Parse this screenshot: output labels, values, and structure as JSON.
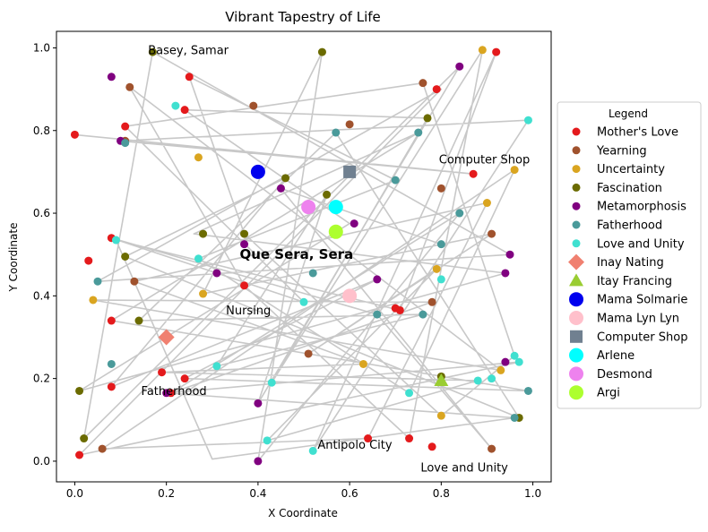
{
  "chart_data": {
    "type": "scatter",
    "title": "Vibrant Tapestry of Life",
    "xlabel": "X Coordinate",
    "ylabel": "Y Coordinate",
    "xlim": [
      -0.04,
      1.04
    ],
    "ylim": [
      -0.05,
      1.04
    ],
    "xticks": [
      "0.0",
      "0.2",
      "0.4",
      "0.6",
      "0.8",
      "1.0"
    ],
    "yticks": [
      "0.0",
      "0.2",
      "0.4",
      "0.6",
      "0.8",
      "1.0"
    ],
    "grid": false,
    "legend_title": "Legend",
    "legend_position": "right",
    "series": [
      {
        "name": "Mother's Love",
        "color": "#e41a1c",
        "marker": "circle",
        "points": [
          [
            0.0,
            0.79
          ],
          [
            0.01,
            0.015
          ],
          [
            0.03,
            0.485
          ],
          [
            0.08,
            0.54
          ],
          [
            0.08,
            0.34
          ],
          [
            0.08,
            0.18
          ],
          [
            0.11,
            0.81
          ],
          [
            0.19,
            0.215
          ],
          [
            0.21,
            0.165
          ],
          [
            0.24,
            0.2
          ],
          [
            0.24,
            0.85
          ],
          [
            0.25,
            0.93
          ],
          [
            0.37,
            0.425
          ],
          [
            0.64,
            0.055
          ],
          [
            0.7,
            0.37
          ],
          [
            0.71,
            0.365
          ],
          [
            0.73,
            0.055
          ],
          [
            0.78,
            0.035
          ],
          [
            0.79,
            0.9
          ],
          [
            0.87,
            0.695
          ],
          [
            0.92,
            0.99
          ]
        ]
      },
      {
        "name": "Yearning",
        "color": "#a0522d",
        "marker": "circle",
        "points": [
          [
            0.06,
            0.03
          ],
          [
            0.11,
            0.775
          ],
          [
            0.12,
            0.905
          ],
          [
            0.13,
            0.435
          ],
          [
            0.39,
            0.86
          ],
          [
            0.51,
            0.26
          ],
          [
            0.6,
            0.815
          ],
          [
            0.76,
            0.915
          ],
          [
            0.78,
            0.385
          ],
          [
            0.8,
            0.66
          ],
          [
            0.91,
            0.55
          ],
          [
            0.91,
            0.03
          ]
        ]
      },
      {
        "name": "Uncertainty",
        "color": "#daa520",
        "marker": "circle",
        "points": [
          [
            0.04,
            0.39
          ],
          [
            0.27,
            0.735
          ],
          [
            0.28,
            0.405
          ],
          [
            0.63,
            0.235
          ],
          [
            0.79,
            0.465
          ],
          [
            0.8,
            0.11
          ],
          [
            0.89,
            0.995
          ],
          [
            0.9,
            0.625
          ],
          [
            0.93,
            0.22
          ],
          [
            0.96,
            0.705
          ]
        ]
      },
      {
        "name": "Fascination",
        "color": "#6b6b00",
        "marker": "circle",
        "points": [
          [
            0.01,
            0.17
          ],
          [
            0.02,
            0.055
          ],
          [
            0.11,
            0.495
          ],
          [
            0.14,
            0.34
          ],
          [
            0.17,
            0.99
          ],
          [
            0.28,
            0.55
          ],
          [
            0.37,
            0.55
          ],
          [
            0.46,
            0.685
          ],
          [
            0.54,
            0.99
          ],
          [
            0.55,
            0.645
          ],
          [
            0.77,
            0.83
          ],
          [
            0.8,
            0.205
          ],
          [
            0.97,
            0.105
          ]
        ]
      },
      {
        "name": "Metamorphosis",
        "color": "#800080",
        "marker": "circle",
        "points": [
          [
            0.08,
            0.93
          ],
          [
            0.1,
            0.775
          ],
          [
            0.2,
            0.165
          ],
          [
            0.31,
            0.455
          ],
          [
            0.37,
            0.525
          ],
          [
            0.4,
            0.14
          ],
          [
            0.4,
            0.0
          ],
          [
            0.45,
            0.66
          ],
          [
            0.61,
            0.575
          ],
          [
            0.66,
            0.44
          ],
          [
            0.84,
            0.955
          ],
          [
            0.94,
            0.24
          ],
          [
            0.94,
            0.455
          ],
          [
            0.95,
            0.5
          ]
        ]
      },
      {
        "name": "Fatherhood",
        "color": "#4a9a9a",
        "marker": "circle",
        "points": [
          [
            0.05,
            0.435
          ],
          [
            0.08,
            0.235
          ],
          [
            0.11,
            0.77
          ],
          [
            0.52,
            0.455
          ],
          [
            0.57,
            0.795
          ],
          [
            0.66,
            0.355
          ],
          [
            0.7,
            0.68
          ],
          [
            0.75,
            0.795
          ],
          [
            0.76,
            0.355
          ],
          [
            0.8,
            0.525
          ],
          [
            0.84,
            0.6
          ],
          [
            0.96,
            0.105
          ],
          [
            0.99,
            0.17
          ]
        ]
      },
      {
        "name": "Love and Unity",
        "color": "#40e0d0",
        "marker": "circle",
        "points": [
          [
            0.09,
            0.535
          ],
          [
            0.22,
            0.86
          ],
          [
            0.27,
            0.49
          ],
          [
            0.31,
            0.23
          ],
          [
            0.42,
            0.05
          ],
          [
            0.43,
            0.19
          ],
          [
            0.5,
            0.385
          ],
          [
            0.52,
            0.025
          ],
          [
            0.73,
            0.165
          ],
          [
            0.8,
            0.44
          ],
          [
            0.88,
            0.195
          ],
          [
            0.91,
            0.2
          ],
          [
            0.96,
            0.255
          ],
          [
            0.97,
            0.24
          ],
          [
            0.99,
            0.825
          ]
        ]
      },
      {
        "name": "Inay Nating",
        "color": "#f08070",
        "marker": "diamond",
        "points": [
          [
            0.2,
            0.3
          ]
        ]
      },
      {
        "name": "Itay Francing",
        "color": "#9acd32",
        "marker": "triangle",
        "points": [
          [
            0.8,
            0.195
          ]
        ]
      },
      {
        "name": "Mama Solmarie",
        "color": "#0000ee",
        "marker": "big-circle",
        "points": [
          [
            0.4,
            0.7
          ]
        ]
      },
      {
        "name": "Mama Lyn Lyn",
        "color": "#ffc0cb",
        "marker": "big-circle",
        "points": [
          [
            0.6,
            0.4
          ]
        ]
      },
      {
        "name": "Computer Shop",
        "color": "#708090",
        "marker": "square",
        "points": [
          [
            0.6,
            0.7
          ]
        ]
      },
      {
        "name": "Arlene",
        "color": "#00ffff",
        "marker": "big-circle",
        "points": [
          [
            0.57,
            0.615
          ]
        ]
      },
      {
        "name": "Desmond",
        "color": "#ee82ee",
        "marker": "big-circle",
        "points": [
          [
            0.51,
            0.615
          ]
        ]
      },
      {
        "name": "Argi",
        "color": "#adff2f",
        "marker": "big-circle",
        "points": [
          [
            0.57,
            0.555
          ]
        ]
      }
    ],
    "connection_path": [
      [
        0.0,
        0.79
      ],
      [
        0.87,
        0.695
      ],
      [
        0.1,
        0.775
      ],
      [
        0.99,
        0.825
      ],
      [
        0.52,
        0.025
      ],
      [
        0.92,
        0.99
      ],
      [
        0.71,
        0.365
      ],
      [
        0.09,
        0.535
      ],
      [
        0.3,
        0.005
      ],
      [
        0.96,
        0.105
      ],
      [
        0.2,
        0.165
      ],
      [
        0.97,
        0.24
      ],
      [
        0.01,
        0.015
      ],
      [
        0.8,
        0.9
      ],
      [
        0.05,
        0.435
      ],
      [
        0.95,
        0.5
      ],
      [
        0.17,
        0.99
      ],
      [
        0.02,
        0.055
      ],
      [
        0.84,
        0.955
      ],
      [
        0.4,
        0.14
      ],
      [
        0.55,
        0.645
      ],
      [
        0.31,
        0.23
      ],
      [
        0.76,
        0.355
      ],
      [
        0.14,
        0.34
      ],
      [
        0.57,
        0.795
      ],
      [
        0.97,
        0.105
      ],
      [
        0.11,
        0.495
      ],
      [
        0.46,
        0.685
      ],
      [
        0.08,
        0.18
      ],
      [
        0.66,
        0.44
      ],
      [
        0.24,
        0.2
      ],
      [
        0.99,
        0.17
      ],
      [
        0.08,
        0.34
      ],
      [
        0.75,
        0.795
      ],
      [
        0.26,
        0.55
      ],
      [
        0.94,
        0.455
      ],
      [
        0.01,
        0.17
      ],
      [
        0.6,
        0.575
      ],
      [
        0.24,
        0.85
      ],
      [
        0.77,
        0.83
      ],
      [
        0.43,
        0.19
      ],
      [
        0.89,
        0.995
      ],
      [
        0.73,
        0.055
      ],
      [
        0.37,
        0.425
      ],
      [
        0.12,
        0.905
      ],
      [
        0.93,
        0.22
      ],
      [
        0.04,
        0.39
      ],
      [
        0.78,
        0.385
      ],
      [
        0.21,
        0.165
      ],
      [
        0.84,
        0.6
      ],
      [
        0.4,
        0.0
      ],
      [
        0.54,
        0.99
      ],
      [
        0.28,
        0.405
      ],
      [
        0.91,
        0.55
      ],
      [
        0.51,
        0.26
      ],
      [
        0.79,
        0.465
      ],
      [
        0.42,
        0.05
      ],
      [
        0.88,
        0.195
      ],
      [
        0.19,
        0.215
      ],
      [
        0.63,
        0.235
      ],
      [
        0.13,
        0.435
      ],
      [
        0.9,
        0.625
      ],
      [
        0.64,
        0.055
      ],
      [
        0.06,
        0.03
      ],
      [
        0.96,
        0.705
      ],
      [
        0.73,
        0.165
      ],
      [
        0.27,
        0.49
      ],
      [
        0.7,
        0.68
      ],
      [
        0.25,
        0.93
      ],
      [
        0.37,
        0.55
      ],
      [
        0.8,
        0.11
      ],
      [
        0.96,
        0.255
      ],
      [
        0.76,
        0.915
      ],
      [
        0.11,
        0.81
      ],
      [
        0.5,
        0.385
      ],
      [
        0.08,
        0.54
      ],
      [
        0.66,
        0.355
      ],
      [
        0.91,
        0.03
      ],
      [
        0.45,
        0.66
      ],
      [
        0.8,
        0.525
      ]
    ],
    "annotations": [
      {
        "text": "Basey, Samar",
        "x": 0.16,
        "y": 0.985,
        "bold": false
      },
      {
        "text": "Computer Shop",
        "x": 0.795,
        "y": 0.72,
        "bold": false
      },
      {
        "text": "Que Sera, Sera",
        "x": 0.36,
        "y": 0.49,
        "bold": true
      },
      {
        "text": "Nursing",
        "x": 0.33,
        "y": 0.355,
        "bold": false
      },
      {
        "text": "Fatherhood",
        "x": 0.145,
        "y": 0.16,
        "bold": false
      },
      {
        "text": "Antipolo City",
        "x": 0.53,
        "y": 0.03,
        "bold": false
      },
      {
        "text": "Love and Unity",
        "x": 0.755,
        "y": -0.025,
        "bold": false
      }
    ]
  }
}
